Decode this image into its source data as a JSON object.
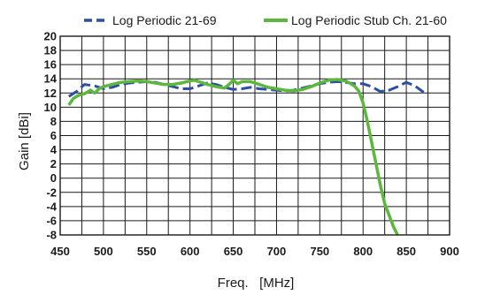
{
  "chart_data": {
    "type": "line",
    "xlabel": "Freq.   [MHz]",
    "ylabel": "Gain   [dBi]",
    "xlim": [
      450,
      900
    ],
    "ylim": [
      -8,
      20
    ],
    "x_ticks": [
      450,
      500,
      550,
      600,
      650,
      700,
      750,
      800,
      850,
      900
    ],
    "y_ticks": [
      20,
      18,
      16,
      14,
      12,
      10,
      8,
      6,
      4,
      2,
      0,
      -2,
      -4,
      -6,
      -8
    ],
    "grid": true,
    "legend_position": "top",
    "series": [
      {
        "name": "Log Periodic 21-69",
        "color": "#2b4fa8",
        "dash": true,
        "x": [
          460,
          470,
          478,
          490,
          500,
          510,
          520,
          530,
          540,
          550,
          560,
          570,
          580,
          590,
          600,
          610,
          620,
          630,
          640,
          650,
          660,
          670,
          680,
          690,
          700,
          710,
          720,
          730,
          740,
          750,
          760,
          770,
          780,
          790,
          800,
          810,
          820,
          830,
          840,
          850,
          860,
          870
        ],
        "y": [
          11.5,
          12.3,
          13.2,
          13.0,
          12.6,
          12.8,
          13.2,
          13.4,
          13.5,
          13.6,
          13.5,
          13.2,
          12.9,
          12.6,
          12.6,
          13.0,
          13.4,
          13.2,
          12.8,
          12.5,
          12.6,
          12.8,
          12.6,
          12.5,
          12.4,
          12.3,
          12.4,
          12.7,
          13.0,
          13.3,
          13.5,
          13.6,
          13.5,
          13.3,
          13.3,
          12.9,
          12.2,
          12.4,
          12.9,
          13.5,
          13.0,
          12.1
        ]
      },
      {
        "name": "Log Periodic Stub Ch. 21-60",
        "color": "#5cb83c",
        "dash": false,
        "x": [
          460,
          465,
          470,
          478,
          485,
          490,
          495,
          500,
          510,
          520,
          530,
          540,
          550,
          560,
          570,
          580,
          590,
          600,
          605,
          610,
          620,
          630,
          640,
          645,
          650,
          655,
          660,
          670,
          680,
          690,
          700,
          710,
          720,
          730,
          740,
          750,
          760,
          770,
          780,
          790,
          795,
          800,
          805,
          810,
          815,
          820,
          825,
          830,
          835,
          840
        ],
        "y": [
          10.3,
          11.2,
          11.6,
          11.9,
          12.4,
          12.0,
          12.6,
          12.9,
          13.2,
          13.5,
          13.6,
          13.7,
          13.6,
          13.4,
          13.2,
          13.2,
          13.4,
          13.7,
          13.8,
          13.6,
          13.2,
          12.9,
          12.7,
          13.2,
          13.8,
          13.3,
          13.6,
          13.6,
          13.2,
          12.8,
          12.6,
          12.4,
          12.3,
          12.5,
          12.9,
          13.4,
          13.8,
          13.9,
          13.7,
          13.0,
          12.3,
          10.6,
          8.0,
          5.0,
          2.0,
          -1.0,
          -3.6,
          -5.2,
          -6.8,
          -8.0
        ]
      }
    ]
  }
}
